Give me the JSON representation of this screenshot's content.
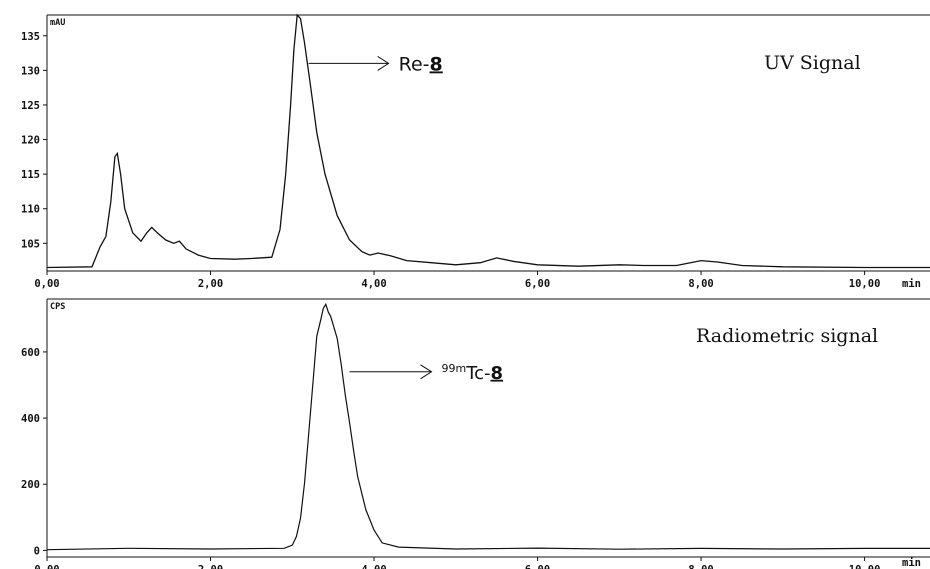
{
  "chart_data": [
    {
      "type": "line",
      "title": "UV Signal",
      "ylabel": "mAU",
      "xlabel": "min",
      "xlim": [
        0,
        10.8
      ],
      "ylim": [
        101,
        138
      ],
      "x_ticks": [
        "0,00",
        "2,00",
        "4,00",
        "6,00",
        "8,00",
        "10,00"
      ],
      "y_ticks": [
        "105",
        "110",
        "115",
        "120",
        "125",
        "130",
        "135"
      ],
      "annotation": {
        "prefix": "Re-",
        "compound": "8",
        "x": 3.2,
        "y": 131
      },
      "series": [
        {
          "x": [
            0,
            0.55,
            0.65,
            0.72,
            0.78,
            0.83,
            0.86,
            0.9,
            0.95,
            1.05,
            1.15,
            1.22,
            1.28,
            1.35,
            1.45,
            1.55,
            1.62,
            1.7,
            1.85,
            2.0,
            2.3,
            2.5,
            2.75,
            2.85,
            2.92,
            2.98,
            3.02,
            3.06,
            3.1,
            3.15,
            3.22,
            3.3,
            3.4,
            3.55,
            3.7,
            3.85,
            3.95,
            4.05,
            4.2,
            4.4,
            4.7,
            5.0,
            5.3,
            5.5,
            5.7,
            6.0,
            6.5,
            7.0,
            7.3,
            7.7,
            8.0,
            8.2,
            8.5,
            9.0,
            10.0,
            10.8
          ],
          "y": [
            101.5,
            101.6,
            104.5,
            106,
            111,
            117.5,
            118,
            115,
            110,
            106.5,
            105.3,
            106.5,
            107.3,
            106.5,
            105.5,
            105,
            105.3,
            104.2,
            103.3,
            102.8,
            102.7,
            102.8,
            103,
            107,
            115,
            125,
            133,
            138,
            137.5,
            134,
            128,
            121,
            115,
            109,
            105.5,
            103.8,
            103.3,
            103.6,
            103.2,
            102.5,
            102.2,
            101.9,
            102.2,
            102.9,
            102.4,
            101.9,
            101.7,
            101.9,
            101.8,
            101.8,
            102.5,
            102.3,
            101.8,
            101.6,
            101.5,
            101.5
          ]
        }
      ]
    },
    {
      "type": "line",
      "title": "Radiometric signal",
      "ylabel": "CPS",
      "xlabel": "min",
      "xlim": [
        0,
        10.8
      ],
      "ylim": [
        -20,
        760
      ],
      "x_ticks": [
        "0,00",
        "2,00",
        "4,00",
        "6,00",
        "8,00",
        "10,00"
      ],
      "y_ticks": [
        "0",
        "200",
        "400",
        "600"
      ],
      "annotation": {
        "prefix": "Tc-",
        "isotope": "99m",
        "compound": "8",
        "x": 3.7,
        "y": 540
      },
      "series": [
        {
          "x": [
            0,
            1.0,
            2.0,
            2.9,
            3.0,
            3.05,
            3.1,
            3.15,
            3.2,
            3.25,
            3.3,
            3.35,
            3.38,
            3.41,
            3.44,
            3.47,
            3.5,
            3.55,
            3.6,
            3.65,
            3.7,
            3.75,
            3.8,
            3.9,
            4.0,
            4.1,
            4.3,
            5.0,
            6.0,
            7.0,
            8.0,
            9.0,
            10.0,
            10.8
          ],
          "y": [
            5,
            5,
            5,
            6,
            15,
            40,
            100,
            200,
            350,
            500,
            650,
            700,
            730,
            745,
            720,
            710,
            680,
            640,
            560,
            470,
            390,
            300,
            220,
            120,
            60,
            25,
            12,
            6,
            5,
            5,
            5,
            5,
            5,
            5
          ]
        }
      ]
    }
  ]
}
